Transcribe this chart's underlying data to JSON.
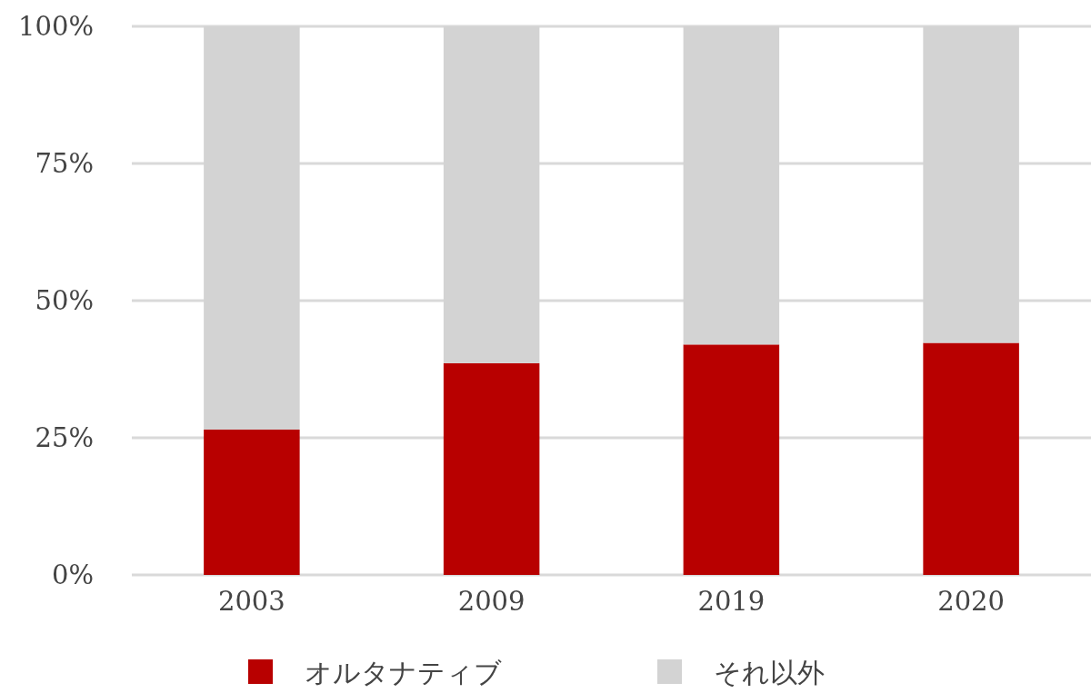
{
  "chart_data": {
    "type": "bar",
    "stacked": true,
    "categories": [
      "2003",
      "2009",
      "2019",
      "2020"
    ],
    "series": [
      {
        "name": "オルタナティブ",
        "color": "#b80000",
        "values": [
          26.5,
          38.6,
          42.0,
          42.3
        ]
      },
      {
        "name": "それ以外",
        "color": "#d3d3d3",
        "values": [
          73.5,
          61.4,
          58.0,
          57.7
        ]
      }
    ],
    "ylim": [
      0,
      100
    ],
    "yticks": [
      {
        "value": 0,
        "label": "0%"
      },
      {
        "value": 25,
        "label": "25%"
      },
      {
        "value": 50,
        "label": "50%"
      },
      {
        "value": 75,
        "label": "75%"
      },
      {
        "value": 100,
        "label": "100%"
      }
    ],
    "grid": "y",
    "legend": "bottom"
  }
}
